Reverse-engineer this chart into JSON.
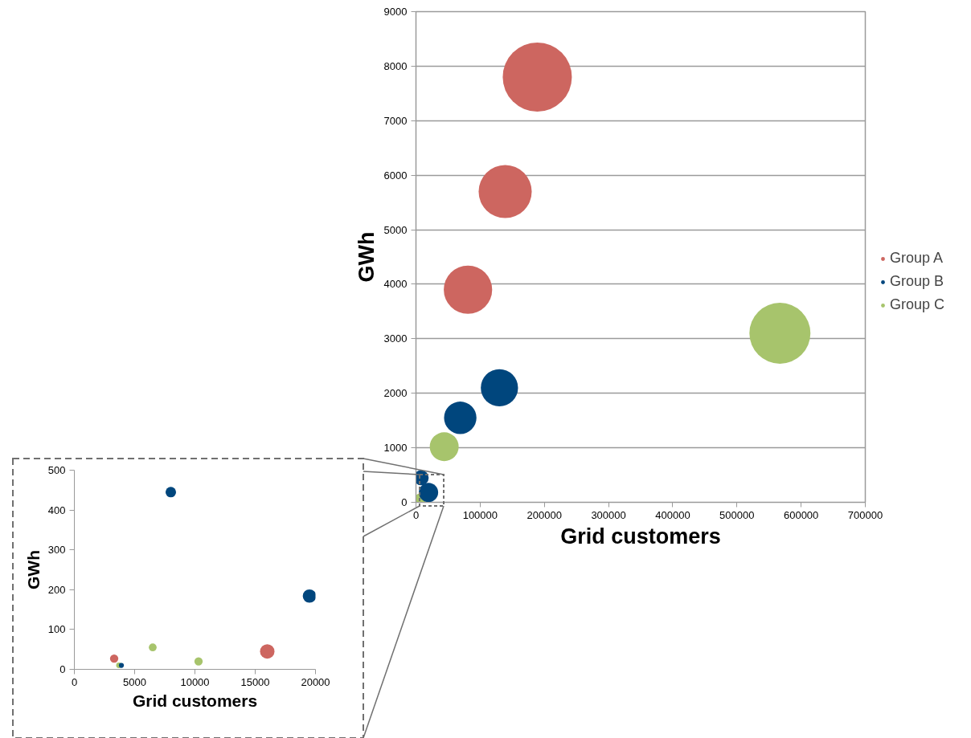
{
  "chart_data": [
    {
      "type": "bubble",
      "xlabel": "Grid customers",
      "ylabel": "GWh",
      "xlim": [
        0,
        700000
      ],
      "ylim": [
        0,
        9000
      ],
      "xticks": [
        0,
        100000,
        200000,
        300000,
        400000,
        500000,
        600000,
        700000
      ],
      "yticks": [
        0,
        1000,
        2000,
        3000,
        4000,
        5000,
        6000,
        7000,
        8000,
        9000
      ],
      "grid": "y",
      "legend": "right",
      "series": [
        {
          "name": "Group A",
          "color": "#cd6660",
          "x": [
            189000,
            139000,
            81000
          ],
          "values": [
            7800,
            5700,
            3900
          ],
          "sizes": [
            1,
            0.59,
            0.49
          ]
        },
        {
          "name": "Group B",
          "color": "#00467d",
          "x": [
            130000,
            69000,
            8000,
            19500
          ],
          "values": [
            2100,
            1550,
            450,
            180
          ],
          "sizes": [
            0.29,
            0.22,
            0.048,
            0.078
          ]
        },
        {
          "name": "Group C",
          "color": "#a7c46c",
          "x": [
            567000,
            44000,
            6500
          ],
          "values": [
            3100,
            1020,
            60
          ],
          "sizes": [
            0.78,
            0.175,
            0.026
          ]
        }
      ]
    },
    {
      "type": "bubble",
      "xlabel": "Grid customers",
      "ylabel": "GWh",
      "xlim": [
        0,
        20000
      ],
      "ylim": [
        0,
        500
      ],
      "xticks": [
        0,
        5000,
        10000,
        15000,
        20000
      ],
      "yticks": [
        0,
        100,
        200,
        300,
        400,
        500
      ],
      "series": [
        {
          "color": "#cd6660",
          "x": [
            16000,
            3300
          ],
          "values": [
            45,
            27
          ],
          "sizes": [
            1,
            0.33
          ]
        },
        {
          "color": "#00467d",
          "x": [
            8000,
            19500,
            3900
          ],
          "values": [
            445,
            184,
            10
          ],
          "sizes": [
            0.53,
            0.86,
            0.12
          ]
        },
        {
          "color": "#a7c46c",
          "x": [
            6500,
            10300,
            3700
          ],
          "values": [
            55,
            20,
            10
          ],
          "sizes": [
            0.29,
            0.33,
            0.15
          ]
        }
      ]
    }
  ]
}
